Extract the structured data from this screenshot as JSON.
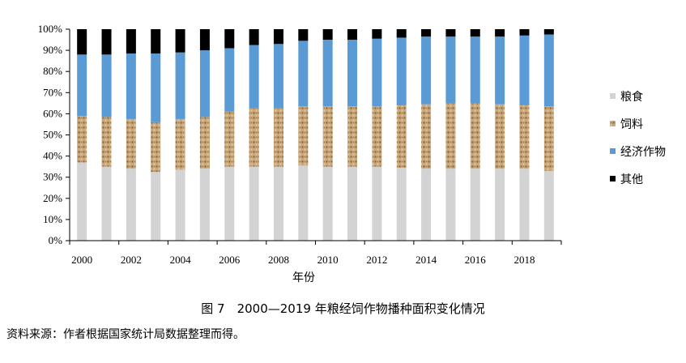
{
  "chart_data": {
    "type": "bar",
    "stacked": true,
    "percent": true,
    "categories": [
      "2000",
      "2001",
      "2002",
      "2003",
      "2004",
      "2005",
      "2006",
      "2007",
      "2008",
      "2009",
      "2010",
      "2011",
      "2012",
      "2013",
      "2014",
      "2015",
      "2016",
      "2017",
      "2018",
      "2019"
    ],
    "x_tick_labels": [
      "2000",
      "2002",
      "2004",
      "2006",
      "2008",
      "2010",
      "2012",
      "2014",
      "2016",
      "2018"
    ],
    "y_ticks": [
      "0%",
      "10%",
      "20%",
      "30%",
      "40%",
      "50%",
      "60%",
      "70%",
      "80%",
      "90%",
      "100%"
    ],
    "ylim": [
      0,
      100
    ],
    "xlabel": "年份",
    "ylabel": "",
    "legend_position": "right",
    "series": [
      {
        "name": "粮食",
        "color": "#d3d3d3",
        "values": [
          37,
          35,
          34,
          32.5,
          33.5,
          34,
          35,
          35,
          35,
          35.5,
          35,
          35,
          35,
          34.5,
          34,
          34,
          34,
          34,
          34,
          33
        ]
      },
      {
        "name": "饲料",
        "color": "#b8976a",
        "values": [
          22,
          23.5,
          23.5,
          23.5,
          24,
          24.5,
          26,
          27.5,
          27.5,
          28,
          28.5,
          28.5,
          28.5,
          29.5,
          30.5,
          31,
          31,
          30.5,
          30,
          30.5
        ]
      },
      {
        "name": "经济作物",
        "color": "#5b9bd5",
        "values": [
          29,
          29.5,
          31,
          32.5,
          31.5,
          31.5,
          30,
          30,
          30.5,
          31,
          31.5,
          31.5,
          32,
          32,
          32,
          31.5,
          31.5,
          32,
          33,
          34
        ]
      },
      {
        "name": "其他",
        "color": "#000000",
        "values": [
          12,
          12,
          11.5,
          11.5,
          11,
          10,
          9,
          7.5,
          7,
          5.5,
          5,
          5,
          4.5,
          4,
          3.5,
          3.5,
          3.5,
          3.5,
          3,
          2.5
        ]
      }
    ]
  },
  "caption": "图 7　2000—2019 年粮经饲作物播种面积变化情况",
  "source_note": "资料来源：作者根据国家统计局数据整理而得。"
}
